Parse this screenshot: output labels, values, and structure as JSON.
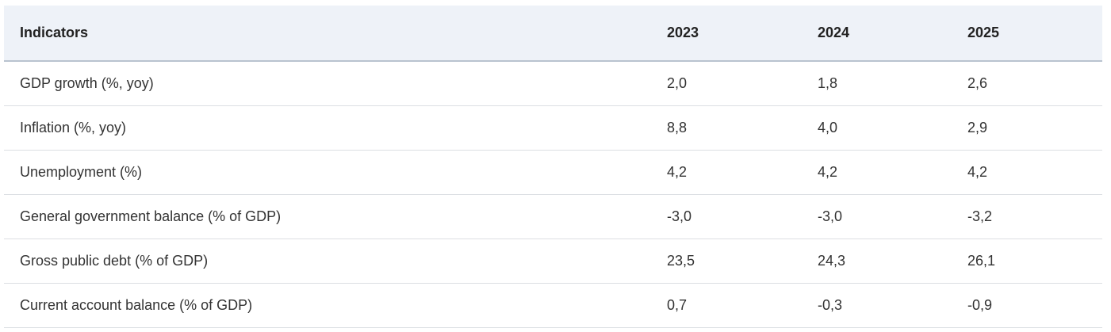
{
  "table": {
    "header": [
      "Indicators",
      "2023",
      "2024",
      "2025"
    ],
    "rows": [
      [
        "GDP growth (%, yoy)",
        "2,0",
        "1,8",
        "2,6"
      ],
      [
        "Inflation (%, yoy)",
        "8,8",
        "4,0",
        "2,9"
      ],
      [
        "Unemployment (%)",
        "4,2",
        "4,2",
        "4,2"
      ],
      [
        "General government balance (% of GDP)",
        "-3,0",
        "-3,0",
        "-3,2"
      ],
      [
        "Gross public debt (% of GDP)",
        "23,5",
        "24,3",
        "26,1"
      ],
      [
        "Current account balance (% of GDP)",
        "0,7",
        "-0,3",
        "-0,9"
      ]
    ]
  }
}
